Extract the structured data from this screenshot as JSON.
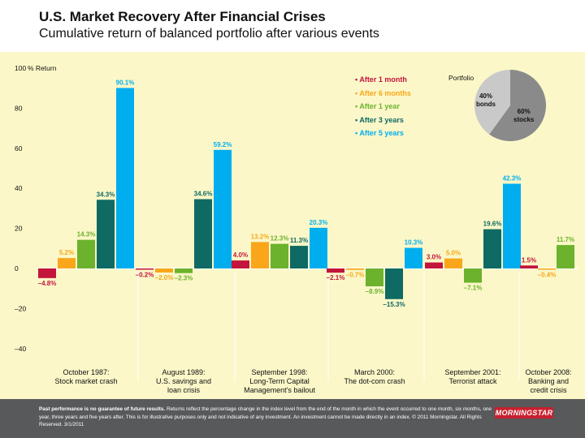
{
  "header": {
    "title": "U.S. Market Recovery After Financial Crises",
    "subtitle": "Cumulative return of balanced portfolio after various events"
  },
  "colors": {
    "panel_bg": "#fbf7c8",
    "after_1_month": "#c3143c",
    "after_6_months": "#f9a61a",
    "after_1_year": "#6cb22d",
    "after_3_years": "#0f6a63",
    "after_5_years": "#00aeef",
    "pie_stocks": "#8a8a8a",
    "pie_bonds": "#c9c9c9",
    "footer_bg": "#58595b",
    "logo_red": "#c8202f"
  },
  "legend": {
    "items": [
      {
        "label": "• After 1 month",
        "color": "#c3143c"
      },
      {
        "label": "• After 6 months",
        "color": "#f9a61a"
      },
      {
        "label": "• After 1 year",
        "color": "#6cb22d"
      },
      {
        "label": "• After 3 years",
        "color": "#0f6a63"
      },
      {
        "label": "• After 5 years",
        "color": "#00aeef"
      }
    ]
  },
  "pie": {
    "label": "Portfolio",
    "bonds_label": "40%\nbonds",
    "stocks_label": "60%\nstocks",
    "bonds_pct": 40,
    "stocks_pct": 60
  },
  "chart_data": {
    "type": "bar",
    "title": "U.S. Market Recovery After Financial Crises",
    "subtitle": "Cumulative return of balanced portfolio after various events",
    "ylabel": "% Return",
    "ylim": [
      -40,
      100
    ],
    "yticks": [
      {
        "value": 100,
        "label": "100"
      },
      {
        "value": 80,
        "label": "80"
      },
      {
        "value": 60,
        "label": "60"
      },
      {
        "value": 40,
        "label": "40"
      },
      {
        "value": 20,
        "label": "20"
      },
      {
        "value": 0,
        "label": "0"
      },
      {
        "value": -20,
        "label": "–20"
      },
      {
        "value": -40,
        "label": "–40"
      }
    ],
    "grid": false,
    "legend_position": "top-right",
    "series": [
      {
        "name": "After 1 month",
        "color": "#c3143c"
      },
      {
        "name": "After 6 months",
        "color": "#f9a61a"
      },
      {
        "name": "After 1 year",
        "color": "#6cb22d"
      },
      {
        "name": "After 3 years",
        "color": "#0f6a63"
      },
      {
        "name": "After 5 years",
        "color": "#00aeef"
      }
    ],
    "categories": [
      {
        "label": "October 1987:\nStock market crash",
        "values": [
          -4.8,
          5.2,
          14.3,
          34.3,
          90.1
        ],
        "value_labels": [
          "–4.8%",
          "5.2%",
          "14.3%",
          "34.3%",
          "90.1%"
        ]
      },
      {
        "label": "August 1989:\nU.S. savings and\nloan crisis",
        "values": [
          -0.2,
          -2.0,
          -2.3,
          34.6,
          59.2
        ],
        "value_labels": [
          "–0.2%",
          "–2.0%",
          "–2.3%",
          "34.6%",
          "59.2%"
        ]
      },
      {
        "label": "September 1998:\nLong-Term Capital\nManagement's bailout",
        "values": [
          4.0,
          13.2,
          12.3,
          11.3,
          20.3
        ],
        "value_labels": [
          "4.0%",
          "13.2%",
          "12.3%",
          "11.3%",
          "20.3%"
        ]
      },
      {
        "label": "March 2000:\nThe dot-com crash",
        "values": [
          -2.1,
          -0.7,
          -8.9,
          -15.3,
          10.3
        ],
        "value_labels": [
          "–2.1%",
          "–0.7%",
          "–8.9%",
          "–15.3%",
          "10.3%"
        ]
      },
      {
        "label": "September 2001:\nTerrorist attack",
        "values": [
          3.0,
          5.0,
          -7.1,
          19.6,
          42.3
        ],
        "value_labels": [
          "3.0%",
          "5.0%",
          "–7.1%",
          "19.6%",
          "42.3%"
        ]
      },
      {
        "label": "October 2008:\nBanking and\ncredit crisis",
        "values": [
          1.5,
          -0.4,
          11.7
        ],
        "series_index": [
          0,
          1,
          2
        ],
        "value_labels": [
          "1.5%",
          "–0.4%",
          "11.7%"
        ]
      }
    ]
  },
  "footer": {
    "bold_text": "Past performance is no guarantee of future results.",
    "text": " Returns reflect the percentage change in the index level from the end of the month in which the event occurred to one month, six months, one year, three years and five years after. This is for illustrative purposes only and not indicative of any investment. An investment cannot be made directly in an index. © 2011 Morningstar. All Rights Reserved. 3/1/2011",
    "logo": "MORNINGSTAR"
  }
}
